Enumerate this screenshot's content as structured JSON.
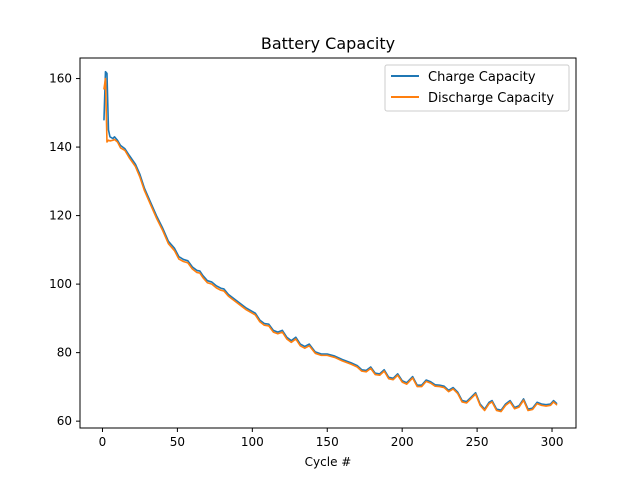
{
  "chart_data": {
    "type": "line",
    "title": "Battery Capacity",
    "xlabel": "Cycle #",
    "ylabel": "",
    "xlim": [
      -15,
      316
    ],
    "ylim": [
      58,
      166
    ],
    "xticks": [
      0,
      50,
      100,
      150,
      200,
      250,
      300
    ],
    "yticks": [
      60,
      80,
      100,
      120,
      140,
      160
    ],
    "grid": false,
    "legend": "top-right",
    "series": [
      {
        "name": "Charge Capacity",
        "color": "#1f77b4",
        "points": [
          [
            1,
            148
          ],
          [
            2,
            162
          ],
          [
            3,
            161.5
          ],
          [
            4,
            145
          ],
          [
            5,
            143
          ],
          [
            7,
            142.5
          ],
          [
            8,
            143
          ],
          [
            10,
            142
          ],
          [
            12,
            140.5
          ],
          [
            15,
            139.5
          ],
          [
            18,
            137.5
          ],
          [
            22,
            135
          ],
          [
            25,
            132
          ],
          [
            28,
            128
          ],
          [
            32,
            124
          ],
          [
            36,
            120
          ],
          [
            40,
            116.5
          ],
          [
            44,
            112.5
          ],
          [
            48,
            110.5
          ],
          [
            51,
            108
          ],
          [
            54,
            107.2
          ],
          [
            57,
            106.8
          ],
          [
            60,
            105
          ],
          [
            63,
            104
          ],
          [
            65,
            103.8
          ],
          [
            67,
            102.5
          ],
          [
            70,
            101
          ],
          [
            73,
            100.6
          ],
          [
            76,
            99.5
          ],
          [
            79,
            98.8
          ],
          [
            81,
            98.6
          ],
          [
            84,
            97
          ],
          [
            90,
            95
          ],
          [
            96,
            93
          ],
          [
            102,
            91.5
          ],
          [
            105,
            89.5
          ],
          [
            108,
            88.5
          ],
          [
            111,
            88.3
          ],
          [
            114,
            86.5
          ],
          [
            117,
            86
          ],
          [
            120,
            86.5
          ],
          [
            123,
            84.5
          ],
          [
            126,
            83.5
          ],
          [
            129,
            84.5
          ],
          [
            132,
            82.5
          ],
          [
            135,
            81.8
          ],
          [
            138,
            82.5
          ],
          [
            142,
            80.2
          ],
          [
            146,
            79.6
          ],
          [
            150,
            79.6
          ],
          [
            155,
            79
          ],
          [
            160,
            78
          ],
          [
            166,
            77
          ],
          [
            170,
            76.2
          ],
          [
            173,
            75
          ],
          [
            176,
            74.8
          ],
          [
            179,
            75.8
          ],
          [
            182,
            74
          ],
          [
            185,
            73.8
          ],
          [
            188,
            75
          ],
          [
            191,
            72.8
          ],
          [
            194,
            72.5
          ],
          [
            197,
            73.8
          ],
          [
            200,
            71.8
          ],
          [
            203,
            71.2
          ],
          [
            207,
            73
          ],
          [
            210,
            70.5
          ],
          [
            213,
            70.5
          ],
          [
            216,
            72
          ],
          [
            219,
            71.5
          ],
          [
            222,
            70.6
          ],
          [
            225,
            70.5
          ],
          [
            228,
            70.2
          ],
          [
            231,
            69
          ],
          [
            234,
            69.8
          ],
          [
            237,
            68.5
          ],
          [
            240,
            66
          ],
          [
            243,
            65.7
          ],
          [
            246,
            67
          ],
          [
            249,
            68.3
          ],
          [
            252,
            65
          ],
          [
            255,
            63.5
          ],
          [
            258,
            65.5
          ],
          [
            260,
            66
          ],
          [
            263,
            63.5
          ],
          [
            266,
            63.2
          ],
          [
            269,
            65
          ],
          [
            272,
            66
          ],
          [
            275,
            64
          ],
          [
            278,
            64.5
          ],
          [
            281,
            66.5
          ],
          [
            284,
            63.5
          ],
          [
            287,
            63.8
          ],
          [
            290,
            65.5
          ],
          [
            293,
            65
          ],
          [
            296,
            64.8
          ],
          [
            299,
            65
          ],
          [
            301,
            66
          ],
          [
            303,
            65.2
          ]
        ]
      },
      {
        "name": "Discharge Capacity",
        "color": "#ff7f0e",
        "points": [
          [
            1,
            157
          ],
          [
            2,
            160
          ],
          [
            3,
            141.5
          ],
          [
            4,
            142
          ],
          [
            5,
            141.8
          ],
          [
            7,
            142
          ],
          [
            8,
            142.2
          ],
          [
            10,
            141.5
          ],
          [
            12,
            139.8
          ],
          [
            15,
            139
          ],
          [
            18,
            136.8
          ],
          [
            22,
            134.3
          ],
          [
            25,
            131.2
          ],
          [
            28,
            127.3
          ],
          [
            32,
            123.3
          ],
          [
            36,
            119.3
          ],
          [
            40,
            115.8
          ],
          [
            44,
            111.8
          ],
          [
            48,
            109.8
          ],
          [
            51,
            107.3
          ],
          [
            54,
            106.6
          ],
          [
            57,
            106.2
          ],
          [
            60,
            104.4
          ],
          [
            63,
            103.4
          ],
          [
            65,
            103.2
          ],
          [
            67,
            101.9
          ],
          [
            70,
            100.4
          ],
          [
            73,
            100
          ],
          [
            76,
            98.9
          ],
          [
            79,
            98.2
          ],
          [
            81,
            98
          ],
          [
            84,
            96.5
          ],
          [
            90,
            94.5
          ],
          [
            96,
            92.5
          ],
          [
            102,
            91
          ],
          [
            105,
            89
          ],
          [
            108,
            88
          ],
          [
            111,
            87.8
          ],
          [
            114,
            86
          ],
          [
            117,
            85.5
          ],
          [
            120,
            86
          ],
          [
            123,
            84
          ],
          [
            126,
            83
          ],
          [
            129,
            84
          ],
          [
            132,
            82
          ],
          [
            135,
            81.3
          ],
          [
            138,
            82
          ],
          [
            142,
            79.8
          ],
          [
            146,
            79.2
          ],
          [
            150,
            79.2
          ],
          [
            155,
            78.6
          ],
          [
            160,
            77.6
          ],
          [
            166,
            76.6
          ],
          [
            170,
            75.8
          ],
          [
            173,
            74.6
          ],
          [
            176,
            74.4
          ],
          [
            179,
            75.4
          ],
          [
            182,
            73.6
          ],
          [
            185,
            73.4
          ],
          [
            188,
            74.6
          ],
          [
            191,
            72.4
          ],
          [
            194,
            72.1
          ],
          [
            197,
            73.4
          ],
          [
            200,
            71.4
          ],
          [
            203,
            70.8
          ],
          [
            207,
            72.6
          ],
          [
            210,
            70.1
          ],
          [
            213,
            70.1
          ],
          [
            216,
            71.6
          ],
          [
            219,
            71.1
          ],
          [
            222,
            70.2
          ],
          [
            225,
            70.1
          ],
          [
            228,
            69.8
          ],
          [
            231,
            68.6
          ],
          [
            234,
            69.4
          ],
          [
            237,
            68.1
          ],
          [
            240,
            65.6
          ],
          [
            243,
            65.3
          ],
          [
            246,
            66.6
          ],
          [
            249,
            67.9
          ],
          [
            252,
            64.6
          ],
          [
            255,
            63.1
          ],
          [
            258,
            65.1
          ],
          [
            260,
            65.6
          ],
          [
            263,
            63.1
          ],
          [
            266,
            62.8
          ],
          [
            269,
            64.6
          ],
          [
            272,
            65.6
          ],
          [
            275,
            63.6
          ],
          [
            278,
            64.1
          ],
          [
            281,
            66.1
          ],
          [
            284,
            63.1
          ],
          [
            287,
            63.4
          ],
          [
            290,
            65.1
          ],
          [
            293,
            64.6
          ],
          [
            296,
            64.4
          ],
          [
            299,
            64.6
          ],
          [
            301,
            65.6
          ],
          [
            303,
            64.8
          ]
        ]
      }
    ]
  }
}
